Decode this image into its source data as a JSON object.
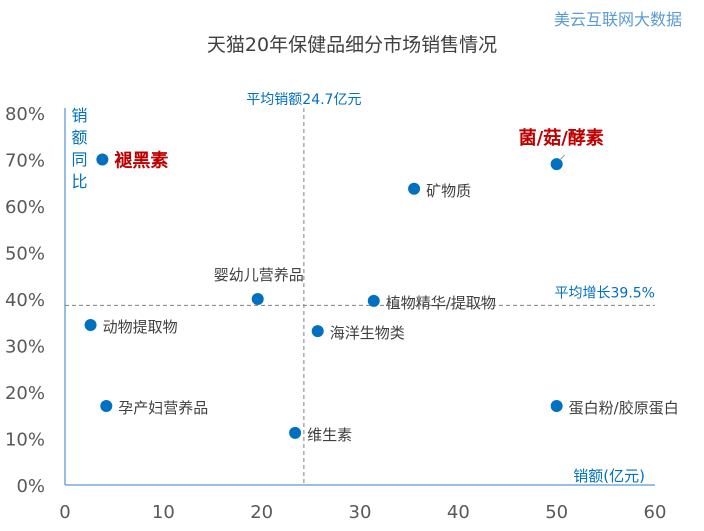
{
  "watermark": "美云互联网大数据",
  "chart_data": {
    "type": "scatter",
    "title": "天猫20年保健品细分市场销售情况",
    "xlabel": "销额(亿元)",
    "ylabel": "销额同比",
    "xlim": [
      0,
      60
    ],
    "ylim": [
      0,
      80
    ],
    "x_ticks": [
      "0",
      "10",
      "20",
      "30",
      "40",
      "50",
      "60"
    ],
    "y_ticks": [
      "0%",
      "10%",
      "20%",
      "30%",
      "40%",
      "50%",
      "60%",
      "70%",
      "80%"
    ],
    "grid": false,
    "reference_lines": {
      "avg_sales": {
        "value": 24.7,
        "label": "平均销额24.7亿元"
      },
      "avg_growth": {
        "value": 39.5,
        "label": "平均增长39.5%"
      }
    },
    "points": [
      {
        "name": "褪黑素",
        "x": 3.8,
        "y": 70,
        "highlight": true
      },
      {
        "name": "菌/菇/酵素",
        "x": 50,
        "y": 69,
        "highlight": true
      },
      {
        "name": "矿物质",
        "x": 35.5,
        "y": 63.7
      },
      {
        "name": "婴幼儿营养品",
        "x": 19.6,
        "y": 40
      },
      {
        "name": "植物精华/提取物",
        "x": 31.4,
        "y": 39.6
      },
      {
        "name": "动物提取物",
        "x": 2.6,
        "y": 34.4
      },
      {
        "name": "海洋生物类",
        "x": 25.7,
        "y": 33.1
      },
      {
        "name": "孕产妇营养品",
        "x": 4.2,
        "y": 17
      },
      {
        "name": "维生素",
        "x": 23.4,
        "y": 11.2
      },
      {
        "name": "蛋白粉/胶原蛋白",
        "x": 50,
        "y": 17
      }
    ]
  },
  "colors": {
    "point": "#0070c0",
    "highlight": "#c00000",
    "axis": "#5b9bd5",
    "ref": "#808080",
    "label": "#0070c0"
  }
}
